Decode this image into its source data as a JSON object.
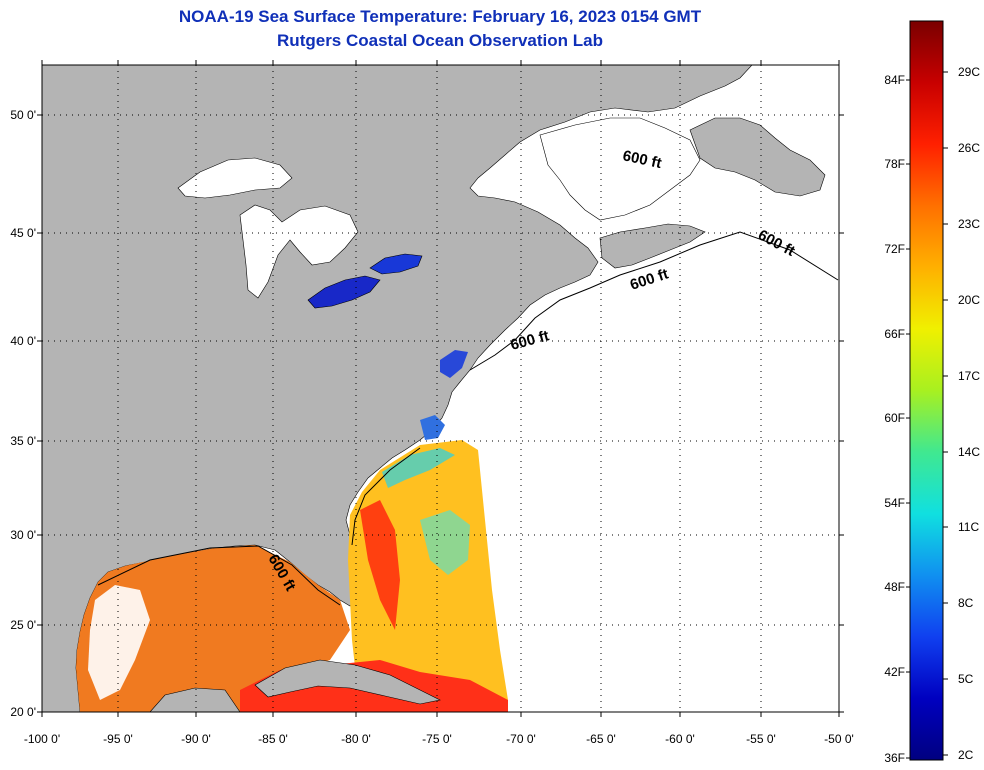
{
  "title": {
    "line1": "NOAA-19 Sea Surface Temperature:  February 16, 2023 0154 GMT",
    "line2": "Rutgers Coastal Ocean Observation Lab"
  },
  "lat_labels": [
    "50 0'",
    "45 0'",
    "40 0'",
    "35 0'",
    "30 0'",
    "25 0'",
    "20 0'"
  ],
  "lon_labels": [
    "-100 0'",
    "-95 0'",
    "-90 0'",
    "-85 0'",
    "-80 0'",
    "-75 0'",
    "-70 0'",
    "-65 0'",
    "-60 0'",
    "-55 0'",
    "-50 0'"
  ],
  "contour_labels": [
    "600 ft",
    "600 ft",
    "600 ft",
    "600 ft",
    "600 ft"
  ],
  "colorbar": {
    "fahrenheit_labels": [
      "84F",
      "78F",
      "72F",
      "66F",
      "60F",
      "54F",
      "48F",
      "42F",
      "36F"
    ],
    "celsius_labels": [
      "29C",
      "26C",
      "23C",
      "20C",
      "17C",
      "14C",
      "11C",
      "8C",
      "5C",
      "2C"
    ],
    "colors": [
      "#7a0000",
      "#c80000",
      "#ff2000",
      "#ff7000",
      "#ffb000",
      "#f0f000",
      "#a8f020",
      "#40e890",
      "#10e0e0",
      "#1090f0",
      "#1040f0",
      "#0000c0",
      "#000080"
    ]
  },
  "colors": {
    "land": "#b4b4b4",
    "ocean_nodata": "#ffffff",
    "title": "#1030b8",
    "grid": "#000000"
  }
}
